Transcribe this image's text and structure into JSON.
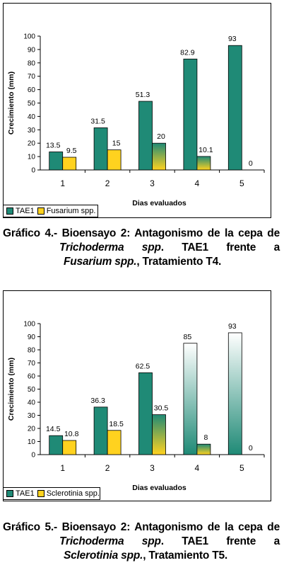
{
  "chart_data": [
    {
      "type": "bar",
      "categories": [
        "1",
        "2",
        "3",
        "4",
        "5"
      ],
      "series": [
        {
          "name": "TAE1",
          "values": [
            13.5,
            31.5,
            51.3,
            82.9,
            93
          ]
        },
        {
          "name": "Fusarium spp.",
          "values": [
            9.5,
            15,
            20,
            10.1,
            0
          ]
        }
      ],
      "data_labels": [
        [
          "13.5",
          "31.5",
          "51.3",
          "82.9",
          "93"
        ],
        [
          "9.5",
          "15",
          "20",
          "10.1",
          "0"
        ]
      ],
      "xlabel": "Dias evaluados",
      "ylabel": "Crecimiento (mm)",
      "ylim": [
        0,
        100
      ],
      "yticks": [
        "0",
        "10",
        "20",
        "30",
        "40",
        "50",
        "60",
        "70",
        "80",
        "90",
        "100"
      ],
      "legend": "bottom-left",
      "colors": {
        "series1": "#1f8a76",
        "series2": "#ffd21f"
      }
    },
    {
      "type": "bar",
      "categories": [
        "1",
        "2",
        "3",
        "4",
        "5"
      ],
      "series": [
        {
          "name": "TAE1",
          "values": [
            14.5,
            36.3,
            62.5,
            85,
            93
          ]
        },
        {
          "name": "Sclerotinia spp.",
          "values": [
            10.8,
            18.5,
            30.5,
            8,
            0
          ]
        }
      ],
      "data_labels": [
        [
          "14.5",
          "36.3",
          "62.5",
          "85",
          "93"
        ],
        [
          "10.8",
          "18.5",
          "30.5",
          "8",
          "0"
        ]
      ],
      "xlabel": "Dias evaluados",
      "ylabel": "Crecimiento (mm)",
      "ylim": [
        0,
        100
      ],
      "yticks": [
        "0",
        "10",
        "20",
        "30",
        "40",
        "50",
        "60",
        "70",
        "80",
        "90",
        "100"
      ],
      "legend": "bottom-left",
      "colors": {
        "series1": "#1f8a76",
        "series2": "#ffd21f"
      }
    }
  ],
  "captions": [
    {
      "l1": "Gráfico 4.- Bioensayo 2: Antagonismo de la cepa de",
      "l2a": "Trichoderma spp",
      "l2b": ". TAE1 frente a",
      "l3a": "Fusarium spp.",
      "l3b": ", Tratamiento T4."
    },
    {
      "l1": "Gráfico 5.- Bioensayo 2: Antagonismo de la cepa de",
      "l2a": "Trichoderma spp",
      "l2b": ". TAE1 frente a",
      "l3a": "Sclerotinia spp.",
      "l3b": ", Tratamiento T5."
    }
  ]
}
